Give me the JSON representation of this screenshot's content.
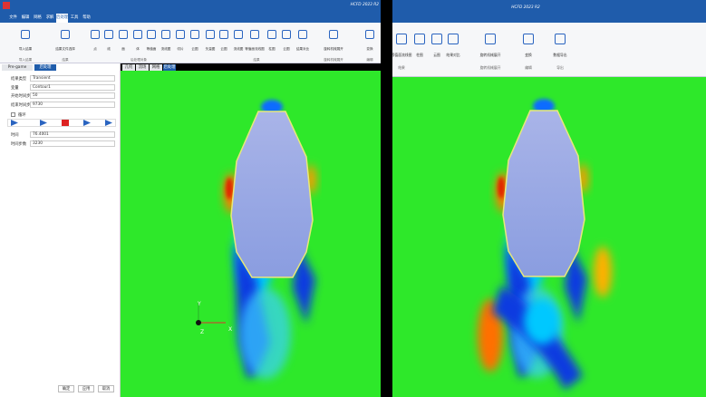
{
  "left_window": {
    "title": "HCFD 2023 R2",
    "menu": [
      "文件",
      "编辑",
      "网格",
      "求解",
      "后处理",
      "工具",
      "帮助"
    ],
    "ribbon_buttons": [
      "导入结果",
      "结果文件选择",
      "点",
      "线",
      "面",
      "体",
      "等值面",
      "流线图",
      "切片",
      "云图",
      "矢量图",
      "云图",
      "流线图",
      "等值面流线图",
      "柱图",
      "云图",
      "结果对比",
      "旋转机械展开",
      "变换"
    ],
    "ribbon_groups": [
      "导入结果",
      "结果",
      "后处理对象",
      "结果",
      "旋转机械展开",
      "编辑"
    ],
    "panel_tabs": [
      "Pre-game",
      "后处理"
    ],
    "viewport_tabs": [
      "几何",
      "流场",
      "网格",
      "后处理"
    ],
    "form": [
      {
        "label": "结果类型",
        "value": "Transient"
      },
      {
        "label": "变量",
        "value": "Contour1"
      },
      {
        "label": "开始时间步",
        "value": "50"
      },
      {
        "label": "结束时间步",
        "value": "9730"
      }
    ],
    "loop_label": "循环",
    "time_fields": [
      {
        "label": "时间",
        "value": "76.4001"
      },
      {
        "label": "时间步数",
        "value": "3230"
      }
    ],
    "dialog_buttons": [
      "确定",
      "应用",
      "取消"
    ],
    "axes": [
      "Y",
      "Z",
      "X"
    ]
  },
  "right_window": {
    "title": "HCFD 2023 R2",
    "ribbon_buttons": [
      "等值面流线图",
      "柱图",
      "云图",
      "结果对比",
      "旋转机械展开",
      "变换",
      "数据导出"
    ],
    "ribbon_groups": [
      "结果",
      "旋转机械展开",
      "编辑",
      "导出"
    ]
  }
}
